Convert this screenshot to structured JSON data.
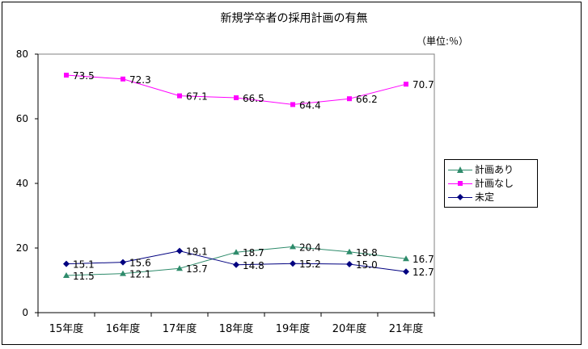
{
  "title": "新規学卒者の採用計画の有無",
  "unit_label": "（単位:％）",
  "chart_data": {
    "type": "line",
    "title": "新規学卒者の採用計画の有無",
    "categories": [
      "15年度",
      "16年度",
      "17年度",
      "18年度",
      "19年度",
      "20年度",
      "21年度"
    ],
    "ylim": [
      0,
      80
    ],
    "yticks": [
      0,
      20,
      40,
      60,
      80
    ],
    "grid": false,
    "legend_position": "right",
    "series": [
      {
        "name": "計画あり",
        "color": "#2E8B6B",
        "marker": "triangle",
        "values": [
          11.5,
          12.1,
          13.7,
          18.7,
          20.4,
          18.8,
          16.7
        ],
        "labels": [
          "11.5",
          "12.1",
          "13.7",
          "18.7",
          "20.4",
          "18.8",
          "16.7"
        ]
      },
      {
        "name": "計画なし",
        "color": "#FF00FF",
        "marker": "square",
        "values": [
          73.5,
          72.3,
          67.1,
          66.5,
          64.4,
          66.2,
          70.7
        ],
        "labels": [
          "73.5",
          "72.3",
          "67.1",
          "66.5",
          "64.4",
          "66.2",
          "70.7"
        ]
      },
      {
        "name": "未定",
        "color": "#000080",
        "marker": "diamond",
        "values": [
          15.1,
          15.6,
          19.1,
          14.8,
          15.2,
          15.0,
          12.7
        ],
        "labels": [
          "15.1",
          "15.6",
          "19.1",
          "14.8",
          "15.2",
          "15.0",
          "12.7"
        ]
      }
    ]
  }
}
